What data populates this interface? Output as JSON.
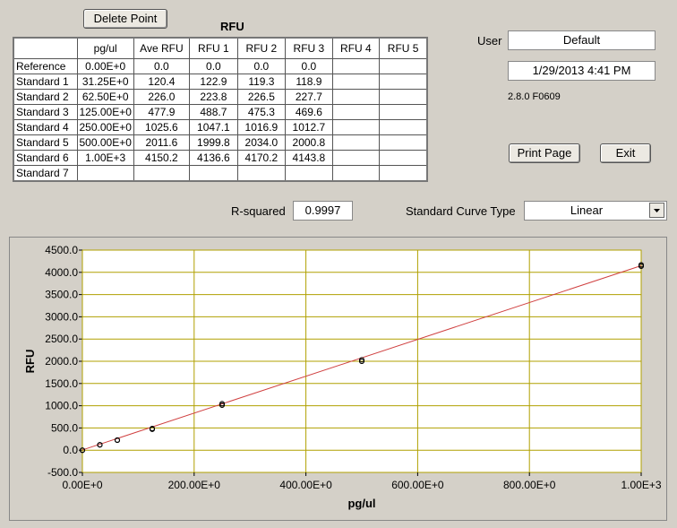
{
  "buttons": {
    "delete_point": "Delete Point",
    "print_page": "Print Page",
    "exit": "Exit"
  },
  "table": {
    "title": "RFU",
    "columns": [
      "pg/ul",
      "Ave RFU",
      "RFU 1",
      "RFU 2",
      "RFU 3",
      "RFU 4",
      "RFU 5"
    ],
    "rows": [
      {
        "label": "Reference",
        "cells": [
          "0.00E+0",
          "0.0",
          "0.0",
          "0.0",
          "0.0"
        ]
      },
      {
        "label": "Standard 1",
        "cells": [
          "31.25E+0",
          "120.4",
          "122.9",
          "119.3",
          "118.9"
        ]
      },
      {
        "label": "Standard 2",
        "cells": [
          "62.50E+0",
          "226.0",
          "223.8",
          "226.5",
          "227.7"
        ]
      },
      {
        "label": "Standard 3",
        "cells": [
          "125.00E+0",
          "477.9",
          "488.7",
          "475.3",
          "469.6"
        ]
      },
      {
        "label": "Standard 4",
        "cells": [
          "250.00E+0",
          "1025.6",
          "1047.1",
          "1016.9",
          "1012.7"
        ]
      },
      {
        "label": "Standard 5",
        "cells": [
          "500.00E+0",
          "2011.6",
          "1999.8",
          "2034.0",
          "2000.8"
        ]
      },
      {
        "label": "Standard 6",
        "cells": [
          "1.00E+3",
          "4150.2",
          "4136.6",
          "4170.2",
          "4143.8"
        ]
      },
      {
        "label": "Standard 7",
        "cells": []
      }
    ]
  },
  "user": {
    "label": "User",
    "value": "Default"
  },
  "datetime": "1/29/2013  4:41 PM",
  "version": "2.8.0 F0609",
  "r_squared": {
    "label": "R-squared",
    "value": "0.9997"
  },
  "curve_type": {
    "label": "Standard Curve Type",
    "value": "Linear"
  },
  "chart_data": {
    "type": "scatter",
    "x_label": "pg/ul",
    "y_label": "RFU",
    "x": [
      0,
      31.25,
      62.5,
      125,
      250,
      500,
      1000
    ],
    "series": [
      {
        "color": "#000000",
        "values": [
          0,
          122.9,
          223.8,
          488.7,
          1047.1,
          1999.8,
          4136.6
        ]
      },
      {
        "color": "#000000",
        "values": [
          0,
          119.3,
          226.5,
          475.3,
          1016.9,
          2034.0,
          4170.2
        ]
      },
      {
        "color": "#000000",
        "values": [
          0,
          118.9,
          227.7,
          469.6,
          1012.7,
          2000.8,
          4143.8
        ]
      }
    ],
    "fit_line": {
      "color": "#d04040",
      "x": [
        0,
        1000
      ],
      "values": [
        5,
        4150
      ]
    },
    "xlim": [
      0,
      1000
    ],
    "xticks": [
      {
        "value": 0,
        "label": "0.00E+0"
      },
      {
        "value": 200,
        "label": "200.00E+0"
      },
      {
        "value": 400,
        "label": "400.00E+0"
      },
      {
        "value": 600,
        "label": "600.00E+0"
      },
      {
        "value": 800,
        "label": "800.00E+0"
      },
      {
        "value": 1000,
        "label": "1.00E+3"
      }
    ],
    "ylim": [
      -500,
      4500
    ],
    "yticks": [
      {
        "value": -500,
        "label": "-500.0"
      },
      {
        "value": 0,
        "label": "0.0"
      },
      {
        "value": 500,
        "label": "500.0"
      },
      {
        "value": 1000,
        "label": "1000.0"
      },
      {
        "value": 1500,
        "label": "1500.0"
      },
      {
        "value": 2000,
        "label": "2000.0"
      },
      {
        "value": 2500,
        "label": "2500.0"
      },
      {
        "value": 3000,
        "label": "3000.0"
      },
      {
        "value": 3500,
        "label": "3500.0"
      },
      {
        "value": 4000,
        "label": "4000.0"
      },
      {
        "value": 4500,
        "label": "4500.0"
      }
    ],
    "grid": true,
    "grid_color": "#b0a000"
  }
}
